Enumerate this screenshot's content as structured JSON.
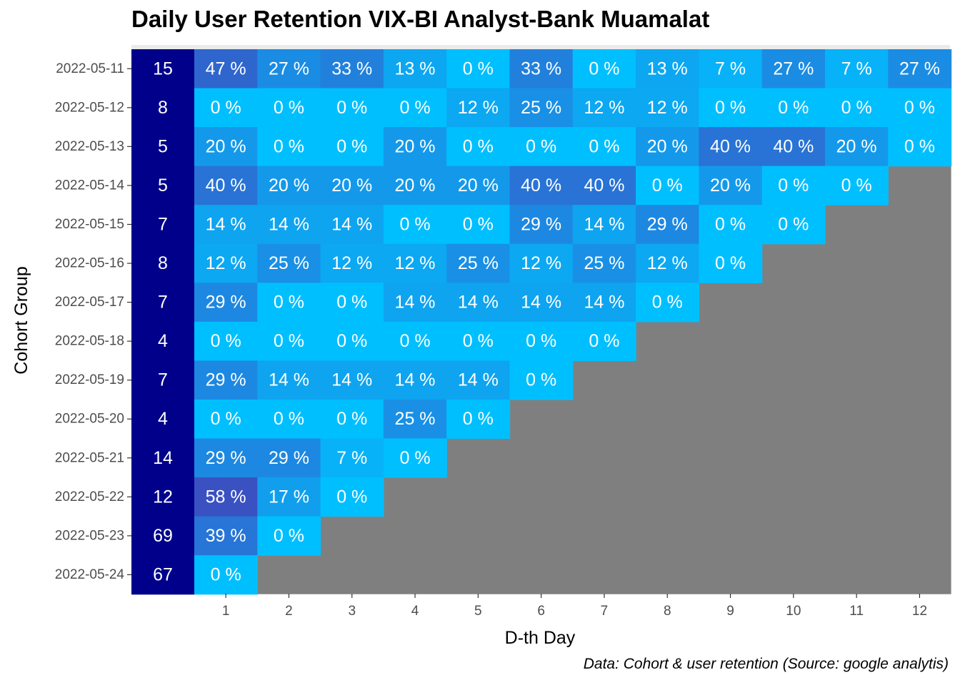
{
  "chart_data": {
    "type": "heatmap",
    "title": "Daily User Retention VIX-BI Analyst-Bank Muamalat",
    "xlabel": "D-th Day",
    "ylabel": "Cohort Group",
    "caption": "Data: Cohort & user retention (Source: google analytis)",
    "x_ticks": [
      "1",
      "2",
      "3",
      "4",
      "5",
      "6",
      "7",
      "8",
      "9",
      "10",
      "11",
      "12"
    ],
    "value_suffix": " %",
    "colors": {
      "cohort_size": "#00008B",
      "panel": "#EBEBEB",
      "missing": "#7F7F7F",
      "low": "#00BFFF",
      "high": "#3A51C2",
      "text": "#FFFFFF"
    },
    "rows": [
      {
        "cohort": "2022-05-11",
        "size": "15",
        "retention": [
          47,
          27,
          33,
          13,
          0,
          33,
          0,
          13,
          7,
          27,
          7,
          27
        ]
      },
      {
        "cohort": "2022-05-12",
        "size": "8",
        "retention": [
          0,
          0,
          0,
          0,
          12,
          25,
          12,
          12,
          0,
          0,
          0,
          0
        ]
      },
      {
        "cohort": "2022-05-13",
        "size": "5",
        "retention": [
          20,
          0,
          0,
          20,
          0,
          0,
          0,
          20,
          40,
          40,
          20,
          0
        ]
      },
      {
        "cohort": "2022-05-14",
        "size": "5",
        "retention": [
          40,
          20,
          20,
          20,
          20,
          40,
          40,
          0,
          20,
          0,
          0
        ]
      },
      {
        "cohort": "2022-05-15",
        "size": "7",
        "retention": [
          14,
          14,
          14,
          0,
          0,
          29,
          14,
          29,
          0,
          0
        ]
      },
      {
        "cohort": "2022-05-16",
        "size": "8",
        "retention": [
          12,
          25,
          12,
          12,
          25,
          12,
          25,
          12,
          0
        ]
      },
      {
        "cohort": "2022-05-17",
        "size": "7",
        "retention": [
          29,
          0,
          0,
          14,
          14,
          14,
          14,
          0
        ]
      },
      {
        "cohort": "2022-05-18",
        "size": "4",
        "retention": [
          0,
          0,
          0,
          0,
          0,
          0,
          0
        ]
      },
      {
        "cohort": "2022-05-19",
        "size": "7",
        "retention": [
          29,
          14,
          14,
          14,
          14,
          0
        ]
      },
      {
        "cohort": "2022-05-20",
        "size": "4",
        "retention": [
          0,
          0,
          0,
          25,
          0
        ]
      },
      {
        "cohort": "2022-05-21",
        "size": "14",
        "retention": [
          29,
          29,
          7,
          0
        ]
      },
      {
        "cohort": "2022-05-22",
        "size": "12",
        "retention": [
          58,
          17,
          0
        ]
      },
      {
        "cohort": "2022-05-23",
        "size": "69",
        "retention": [
          39,
          0
        ]
      },
      {
        "cohort": "2022-05-24",
        "size": "67",
        "retention": [
          0
        ]
      }
    ]
  }
}
